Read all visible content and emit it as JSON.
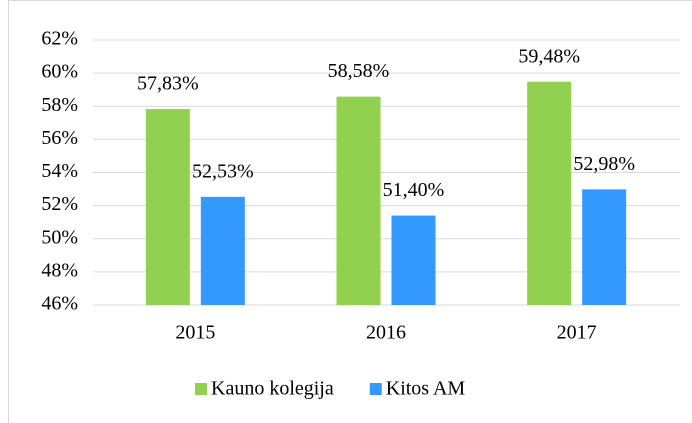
{
  "chart_data": {
    "type": "bar",
    "categories": [
      "2015",
      "2016",
      "2017"
    ],
    "series": [
      {
        "name": "Kauno kolegija",
        "color": "#92d050",
        "values": [
          57.83,
          58.58,
          59.48
        ],
        "value_labels": [
          "57,83%",
          "58,58%",
          "59,48%"
        ]
      },
      {
        "name": "Kitos AM",
        "color": "#3399ff",
        "values": [
          52.53,
          51.4,
          52.98
        ],
        "value_labels": [
          "52,53%",
          "51,40%",
          "52,98%"
        ]
      }
    ],
    "ylim": [
      46,
      62
    ],
    "yticks": [
      {
        "value": 46,
        "label": "46%"
      },
      {
        "value": 48,
        "label": "48%"
      },
      {
        "value": 50,
        "label": "50%"
      },
      {
        "value": 52,
        "label": "52%"
      },
      {
        "value": 54,
        "label": "54%"
      },
      {
        "value": 56,
        "label": "56%"
      },
      {
        "value": 58,
        "label": "58%"
      },
      {
        "value": 60,
        "label": "60%"
      },
      {
        "value": 62,
        "label": "62%"
      }
    ],
    "grid": true,
    "legend": "bottom"
  }
}
